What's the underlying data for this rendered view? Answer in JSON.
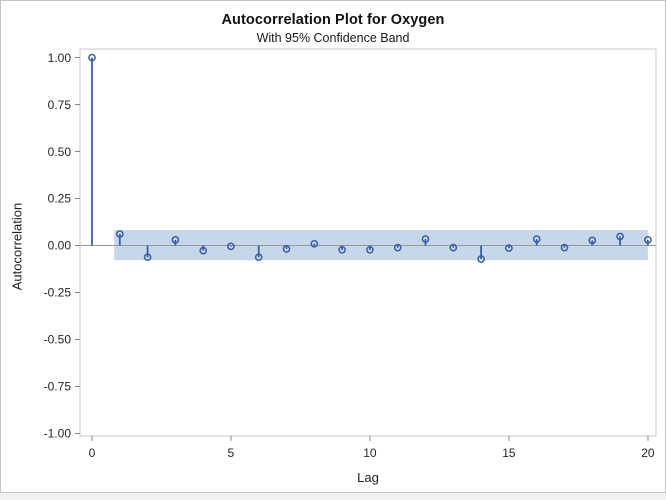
{
  "chart_data": {
    "type": "scatter",
    "subtype": "needle-stem-acf",
    "title": "Autocorrelation Plot for Oxygen",
    "subtitle": "With 95% Confidence Band",
    "xlabel": "Lag",
    "ylabel": "Autocorrelation",
    "xlim": [
      -0.43,
      20.29
    ],
    "ylim": [
      -1.014,
      1.046
    ],
    "x_ticks": [
      0,
      5,
      10,
      15,
      20
    ],
    "x_tick_labels": [
      "0",
      "5",
      "10",
      "15",
      "20"
    ],
    "y_ticks": [
      1.0,
      0.75,
      0.5,
      0.25,
      0.0,
      -0.25,
      -0.5,
      -0.75,
      -1.0
    ],
    "y_tick_labels": [
      "1.00",
      "0.75",
      "0.50",
      "0.25",
      "0.00",
      "-0.25",
      "-0.50",
      "-0.75",
      "-1.00"
    ],
    "grid": "off",
    "legend": "none",
    "lags": [
      0,
      1,
      2,
      3,
      4,
      5,
      6,
      7,
      8,
      9,
      10,
      11,
      12,
      13,
      14,
      15,
      16,
      17,
      18,
      19,
      20
    ],
    "acf": [
      1.0,
      0.061,
      -0.062,
      0.03,
      -0.027,
      -0.005,
      -0.062,
      -0.018,
      0.009,
      -0.023,
      -0.023,
      -0.011,
      0.034,
      -0.011,
      -0.072,
      -0.014,
      0.034,
      -0.011,
      0.027,
      0.048,
      0.03
    ],
    "confidence_band": {
      "label": "95% Confidence Band",
      "upper": 0.082,
      "lower": -0.078,
      "x_start": 0.8,
      "x_end": 20
    },
    "marker": "open-circle",
    "colors": {
      "series": "#3a5fa5",
      "band_fill": "#c7d7ea",
      "zero_line": "#999999",
      "frame": "#c9c9c9",
      "tick_mark": "#848484",
      "text": "#262626"
    }
  }
}
